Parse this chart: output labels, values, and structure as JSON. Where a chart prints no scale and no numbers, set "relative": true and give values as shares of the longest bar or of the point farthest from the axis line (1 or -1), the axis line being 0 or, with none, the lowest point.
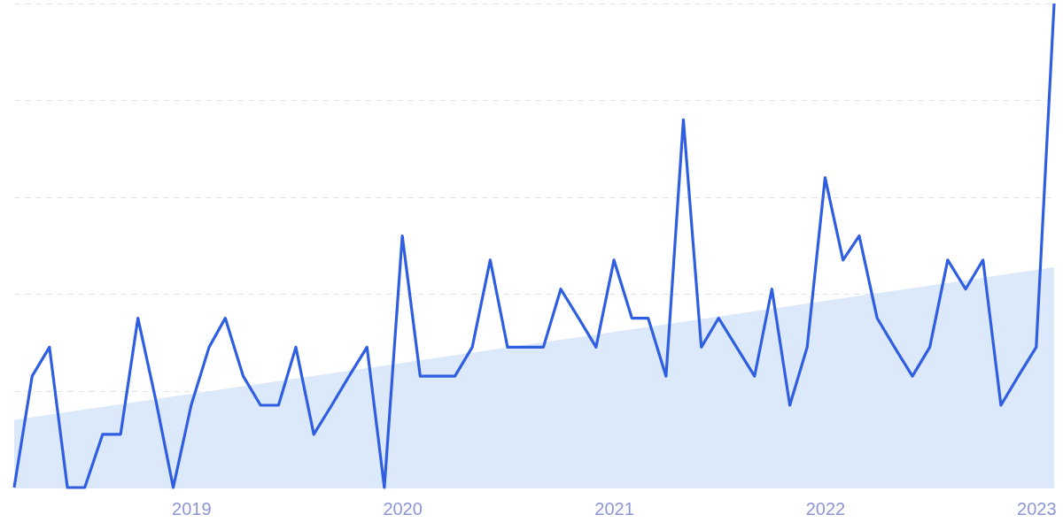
{
  "chart_data": {
    "type": "line",
    "relative": true,
    "grid": "y",
    "line_style": "solid",
    "x": [
      "2018-03",
      "2018-04",
      "2018-05",
      "2018-06",
      "2018-07",
      "2018-08",
      "2018-09",
      "2018-10",
      "2018-11",
      "2018-12",
      "2019-01",
      "2019-02",
      "2019-03",
      "2019-04",
      "2019-05",
      "2019-06",
      "2019-07",
      "2019-08",
      "2019-09",
      "2019-10",
      "2019-11",
      "2019-12",
      "2020-01",
      "2020-02",
      "2020-03",
      "2020-04",
      "2020-05",
      "2020-06",
      "2020-07",
      "2020-08",
      "2020-09",
      "2020-10",
      "2020-11",
      "2020-12",
      "2021-01",
      "2021-02",
      "2021-03",
      "2021-04",
      "2021-05",
      "2021-06",
      "2021-07",
      "2021-08",
      "2021-09",
      "2021-10",
      "2021-11",
      "2021-12",
      "2022-01",
      "2022-02",
      "2022-03",
      "2022-04",
      "2022-05",
      "2022-06",
      "2022-07",
      "2022-08",
      "2022-09",
      "2022-10",
      "2022-11",
      "2022-12",
      "2023-01",
      "2023-02"
    ],
    "xlim": [
      "2018-03",
      "2023-02"
    ],
    "xticks": [
      "2019",
      "2020",
      "2021",
      "2022",
      "2023"
    ],
    "series": [
      {
        "type": "area",
        "color": "#dce9fb",
        "x": [
          "2018-03",
          "2023-02"
        ],
        "values": [
          0.14,
          0.455
        ]
      },
      {
        "color": "#2f5fe0",
        "values": [
          0,
          0.23,
          0.29,
          0,
          0,
          0.11,
          0.11,
          0.35,
          0.18,
          0,
          0.17,
          0.29,
          0.35,
          0.23,
          0.17,
          0.17,
          0.29,
          0.11,
          0.17,
          0.23,
          0.29,
          0,
          0.52,
          0.23,
          0.23,
          0.23,
          0.29,
          0.47,
          0.29,
          0.29,
          0.29,
          0.41,
          0.35,
          0.29,
          0.47,
          0.35,
          0.35,
          0.23,
          0.76,
          0.29,
          0.35,
          0.29,
          0.23,
          0.41,
          0.17,
          0.29,
          0.64,
          0.47,
          0.52,
          0.35,
          0.29,
          0.23,
          0.29,
          0.47,
          0.41,
          0.47,
          0.17,
          0.23,
          0.29,
          1
        ]
      }
    ]
  }
}
